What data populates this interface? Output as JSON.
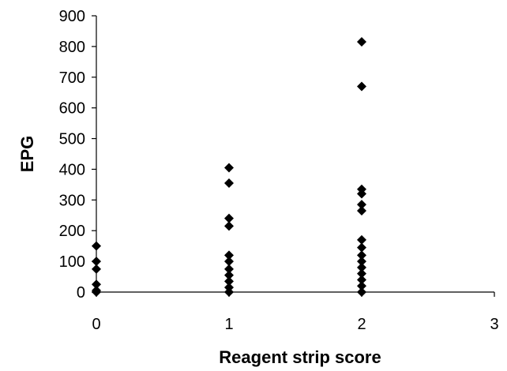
{
  "chart_data": {
    "type": "scatter",
    "title": "",
    "xlabel": "Reagent strip score",
    "ylabel": "EPG",
    "xlim": [
      0,
      3
    ],
    "ylim": [
      0,
      900
    ],
    "x_ticks": [
      0,
      1,
      2,
      3
    ],
    "y_ticks": [
      0,
      100,
      200,
      300,
      400,
      500,
      600,
      700,
      800,
      900
    ],
    "grid": false,
    "legend": "none",
    "marker": "diamond",
    "marker_color": "#000000",
    "points": [
      {
        "x": 0,
        "y": 0
      },
      {
        "x": 0,
        "y": 5
      },
      {
        "x": 0,
        "y": 25
      },
      {
        "x": 0,
        "y": 75
      },
      {
        "x": 0,
        "y": 100
      },
      {
        "x": 0,
        "y": 150
      },
      {
        "x": 1,
        "y": 0
      },
      {
        "x": 1,
        "y": 15
      },
      {
        "x": 1,
        "y": 35
      },
      {
        "x": 1,
        "y": 55
      },
      {
        "x": 1,
        "y": 75
      },
      {
        "x": 1,
        "y": 100
      },
      {
        "x": 1,
        "y": 120
      },
      {
        "x": 1,
        "y": 215
      },
      {
        "x": 1,
        "y": 240
      },
      {
        "x": 1,
        "y": 355
      },
      {
        "x": 1,
        "y": 405
      },
      {
        "x": 2,
        "y": 0
      },
      {
        "x": 2,
        "y": 20
      },
      {
        "x": 2,
        "y": 40
      },
      {
        "x": 2,
        "y": 60
      },
      {
        "x": 2,
        "y": 80
      },
      {
        "x": 2,
        "y": 100
      },
      {
        "x": 2,
        "y": 120
      },
      {
        "x": 2,
        "y": 145
      },
      {
        "x": 2,
        "y": 170
      },
      {
        "x": 2,
        "y": 265
      },
      {
        "x": 2,
        "y": 285
      },
      {
        "x": 2,
        "y": 320
      },
      {
        "x": 2,
        "y": 335
      },
      {
        "x": 2,
        "y": 670
      },
      {
        "x": 2,
        "y": 815
      }
    ]
  }
}
